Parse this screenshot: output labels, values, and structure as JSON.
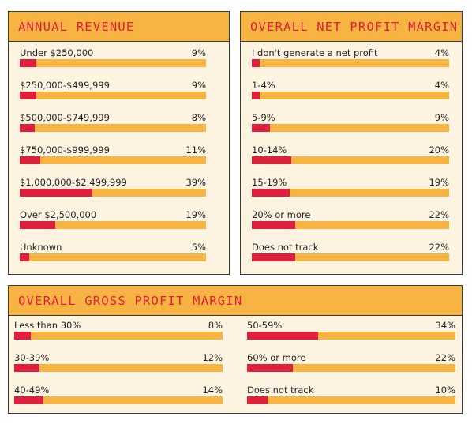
{
  "chart_data": [
    {
      "type": "bar",
      "title": "ANNUAL REVENUE",
      "categories": [
        "Under $250,000",
        "$250,000-$499,999",
        "$500,000-$749,999",
        "$750,000-$999,999",
        "$1,000,000-$2,499,999",
        "Over $2,500,000",
        "Unknown"
      ],
      "values": [
        9,
        9,
        8,
        11,
        39,
        19,
        5
      ],
      "value_labels": [
        "9%",
        "9%",
        "8%",
        "11%",
        "39%",
        "19%",
        "5%"
      ],
      "unit": "%",
      "xlim": [
        0,
        100
      ]
    },
    {
      "type": "bar",
      "title": "OVERALL NET PROFIT MARGIN",
      "categories": [
        "I don't generate a net profit",
        "1-4%",
        "5-9%",
        "10-14%",
        "15-19%",
        "20% or more",
        "Does not track"
      ],
      "values": [
        4,
        4,
        9,
        20,
        19,
        22,
        22
      ],
      "value_labels": [
        "4%",
        "4%",
        "9%",
        "20%",
        "19%",
        "22%",
        "22%"
      ],
      "unit": "%",
      "xlim": [
        0,
        100
      ]
    },
    {
      "type": "bar",
      "title": "OVERALL GROSS PROFIT MARGIN",
      "categories": [
        "Less than 30%",
        "30-39%",
        "40-49%",
        "50-59%",
        "60% or more",
        "Does not track"
      ],
      "values": [
        8,
        12,
        14,
        34,
        22,
        10
      ],
      "value_labels": [
        "8%",
        "12%",
        "14%",
        "34%",
        "22%",
        "10%"
      ],
      "unit": "%",
      "xlim": [
        0,
        100
      ]
    }
  ],
  "colors": {
    "accent_red": "#e01f3d",
    "bar_track": "#f7b442",
    "panel_background": "#fdf3e1",
    "border": "#3a3a3a"
  }
}
